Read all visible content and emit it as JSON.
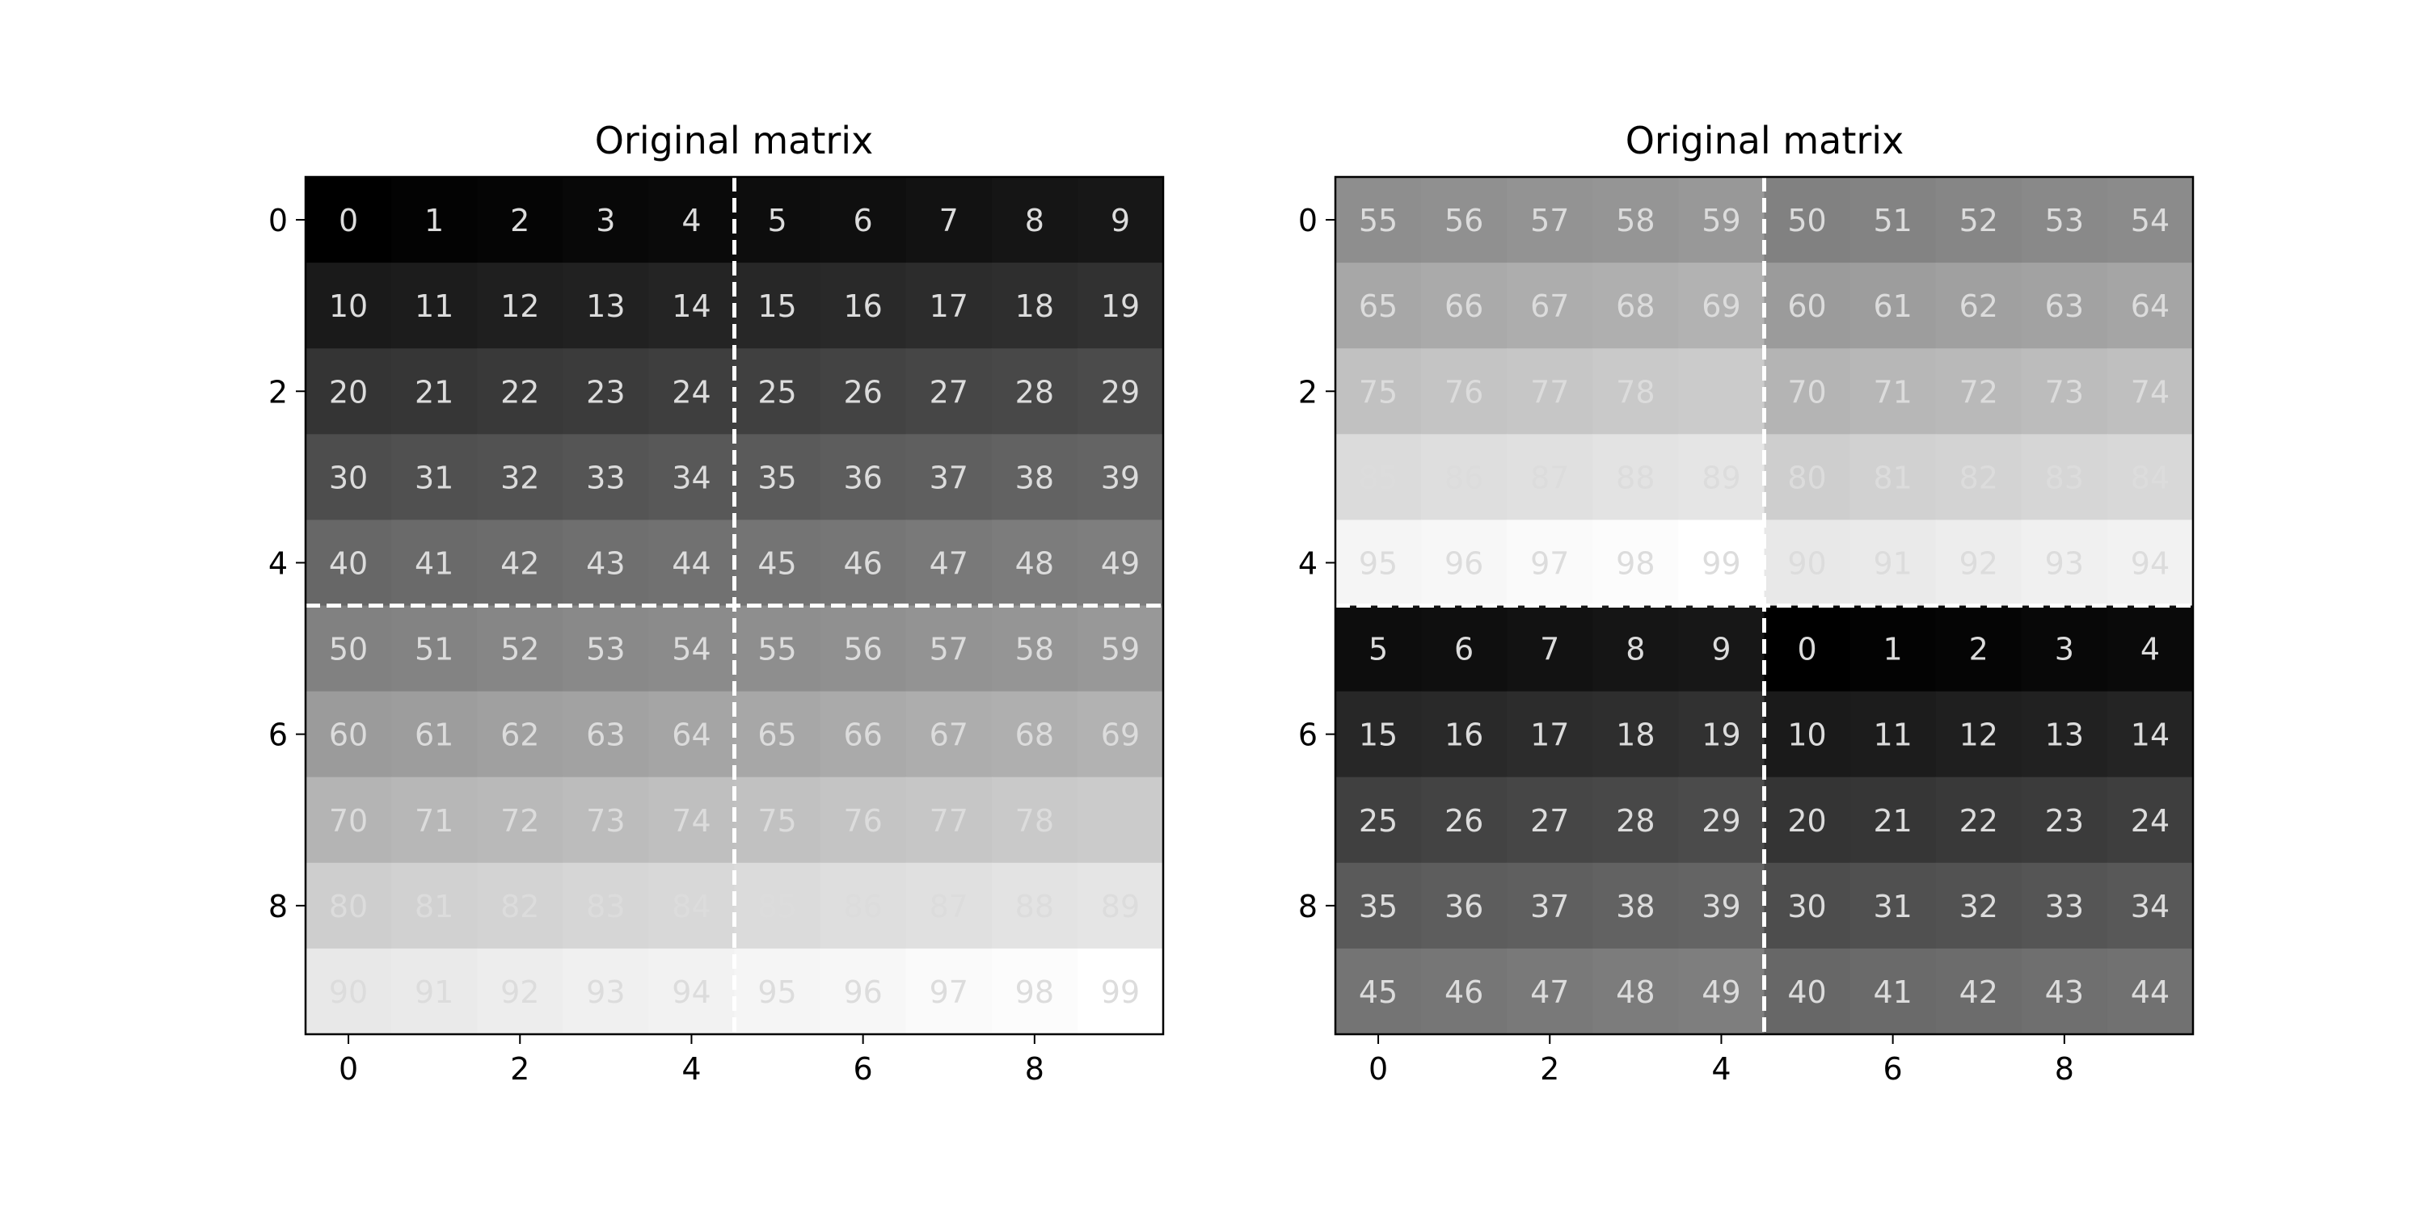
{
  "chart_data": [
    {
      "type": "heatmap",
      "title": "Original matrix",
      "colormap": "gray",
      "vmin": 0,
      "vmax": 99,
      "xticks": [
        0,
        2,
        4,
        6,
        8
      ],
      "yticks": [
        0,
        2,
        4,
        6,
        8
      ],
      "xlim": [
        -0.5,
        9.5
      ],
      "ylim": [
        9.5,
        -0.5
      ],
      "divider_at": 4.5,
      "divider_style": "dashed",
      "divider_color": "#ffffff",
      "values": [
        [
          0,
          1,
          2,
          3,
          4,
          5,
          6,
          7,
          8,
          9
        ],
        [
          10,
          11,
          12,
          13,
          14,
          15,
          16,
          17,
          18,
          19
        ],
        [
          20,
          21,
          22,
          23,
          24,
          25,
          26,
          27,
          28,
          29
        ],
        [
          30,
          31,
          32,
          33,
          34,
          35,
          36,
          37,
          38,
          39
        ],
        [
          40,
          41,
          42,
          43,
          44,
          45,
          46,
          47,
          48,
          49
        ],
        [
          50,
          51,
          52,
          53,
          54,
          55,
          56,
          57,
          58,
          59
        ],
        [
          60,
          61,
          62,
          63,
          64,
          65,
          66,
          67,
          68,
          69
        ],
        [
          70,
          71,
          72,
          73,
          74,
          75,
          76,
          77,
          78,
          79
        ],
        [
          80,
          81,
          82,
          83,
          84,
          85,
          86,
          87,
          88,
          89
        ],
        [
          90,
          91,
          92,
          93,
          94,
          95,
          96,
          97,
          98,
          99
        ]
      ],
      "labels": [
        [
          "0",
          "1",
          "2",
          "3",
          "4",
          "5",
          "6",
          "7",
          "8",
          "9"
        ],
        [
          "10",
          "11",
          "12",
          "13",
          "14",
          "15",
          "16",
          "17",
          "18",
          "19"
        ],
        [
          "20",
          "21",
          "22",
          "23",
          "24",
          "25",
          "26",
          "27",
          "28",
          "29"
        ],
        [
          "30",
          "31",
          "32",
          "33",
          "34",
          "35",
          "36",
          "37",
          "38",
          "39"
        ],
        [
          "40",
          "41",
          "42",
          "43",
          "44",
          "45",
          "46",
          "47",
          "48",
          "49"
        ],
        [
          "50",
          "51",
          "52",
          "53",
          "54",
          "55",
          "56",
          "57",
          "58",
          "59"
        ],
        [
          "60",
          "61",
          "62",
          "63",
          "64",
          "65",
          "66",
          "67",
          "68",
          "69"
        ],
        [
          "70",
          "71",
          "72",
          "73",
          "74",
          "75",
          "76",
          "77",
          "78",
          ""
        ],
        [
          "80",
          "81",
          "82",
          "83",
          "84",
          "85",
          "86",
          "87",
          "88",
          "89"
        ],
        [
          "90",
          "91",
          "92",
          "93",
          "94",
          "95",
          "96",
          "97",
          "98",
          "99"
        ]
      ]
    },
    {
      "type": "heatmap",
      "title": "Original matrix",
      "colormap": "gray",
      "vmin": 0,
      "vmax": 99,
      "xticks": [
        0,
        2,
        4,
        6,
        8
      ],
      "yticks": [
        0,
        2,
        4,
        6,
        8
      ],
      "xlim": [
        -0.5,
        9.5
      ],
      "ylim": [
        9.5,
        -0.5
      ],
      "divider_at": 4.5,
      "divider_style": "dashed",
      "divider_color": "#ffffff",
      "values": [
        [
          55,
          56,
          57,
          58,
          59,
          50,
          51,
          52,
          53,
          54
        ],
        [
          65,
          66,
          67,
          68,
          69,
          60,
          61,
          62,
          63,
          64
        ],
        [
          75,
          76,
          77,
          78,
          79,
          70,
          71,
          72,
          73,
          74
        ],
        [
          85,
          86,
          87,
          88,
          89,
          80,
          81,
          82,
          83,
          84
        ],
        [
          95,
          96,
          97,
          98,
          99,
          90,
          91,
          92,
          93,
          94
        ],
        [
          5,
          6,
          7,
          8,
          9,
          0,
          1,
          2,
          3,
          4
        ],
        [
          15,
          16,
          17,
          18,
          19,
          10,
          11,
          12,
          13,
          14
        ],
        [
          25,
          26,
          27,
          28,
          29,
          20,
          21,
          22,
          23,
          24
        ],
        [
          35,
          36,
          37,
          38,
          39,
          30,
          31,
          32,
          33,
          34
        ],
        [
          45,
          46,
          47,
          48,
          49,
          40,
          41,
          42,
          43,
          44
        ]
      ],
      "labels": [
        [
          "55",
          "56",
          "57",
          "58",
          "59",
          "50",
          "51",
          "52",
          "53",
          "54"
        ],
        [
          "65",
          "66",
          "67",
          "68",
          "69",
          "60",
          "61",
          "62",
          "63",
          "64"
        ],
        [
          "75",
          "76",
          "77",
          "78",
          "",
          "70",
          "71",
          "72",
          "73",
          "74"
        ],
        [
          "85",
          "86",
          "87",
          "88",
          "89",
          "80",
          "81",
          "82",
          "83",
          "84"
        ],
        [
          "95",
          "96",
          "97",
          "98",
          "99",
          "90",
          "91",
          "92",
          "93",
          "94"
        ],
        [
          "5",
          "6",
          "7",
          "8",
          "9",
          "0",
          "1",
          "2",
          "3",
          "4"
        ],
        [
          "15",
          "16",
          "17",
          "18",
          "19",
          "10",
          "11",
          "12",
          "13",
          "14"
        ],
        [
          "25",
          "26",
          "27",
          "28",
          "29",
          "20",
          "21",
          "22",
          "23",
          "24"
        ],
        [
          "35",
          "36",
          "37",
          "38",
          "39",
          "30",
          "31",
          "32",
          "33",
          "34"
        ],
        [
          "45",
          "46",
          "47",
          "48",
          "49",
          "40",
          "41",
          "42",
          "43",
          "44"
        ]
      ]
    }
  ]
}
